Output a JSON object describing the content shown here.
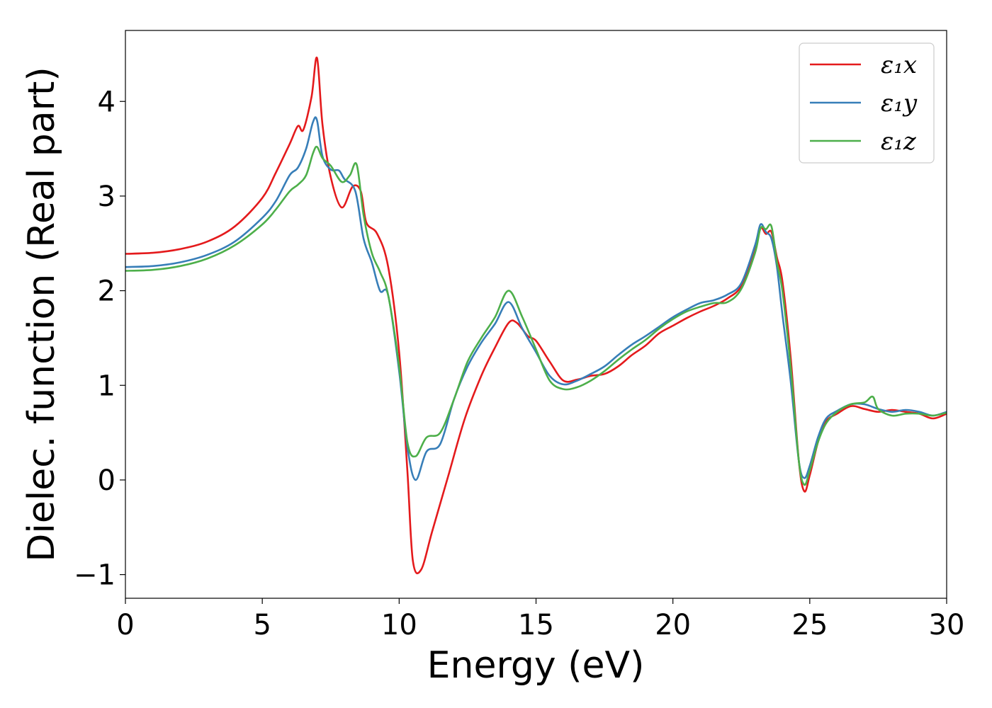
{
  "chart_data": {
    "type": "line",
    "title": "",
    "xlabel": "Energy (eV)",
    "ylabel": "Dielec. function (Real part)",
    "xlim": [
      0,
      30
    ],
    "ylim": [
      -1.25,
      4.75
    ],
    "xticks": [
      0,
      5,
      10,
      15,
      20,
      25,
      30
    ],
    "yticks": [
      -1,
      0,
      1,
      2,
      3,
      4
    ],
    "xtick_labels": [
      "0",
      "5",
      "10",
      "15",
      "20",
      "25",
      "30"
    ],
    "ytick_labels": [
      "−1",
      "0",
      "1",
      "2",
      "3",
      "4"
    ],
    "grid": false,
    "legend_position": "top-right",
    "series": [
      {
        "name": "ε₁x",
        "color": "#e41a1c",
        "x": [
          0,
          1,
          2,
          3,
          4,
          5,
          5.5,
          6.0,
          6.3,
          6.5,
          6.8,
          7.0,
          7.2,
          7.5,
          7.9,
          8.3,
          8.6,
          8.8,
          9.2,
          9.6,
          10.0,
          10.3,
          10.5,
          10.8,
          11.2,
          11.8,
          12.4,
          13.0,
          13.5,
          14.0,
          14.3,
          14.7,
          15.0,
          15.5,
          16.0,
          16.5,
          17.0,
          17.5,
          18.0,
          18.5,
          19.0,
          19.5,
          20.0,
          20.5,
          21.0,
          21.5,
          22.0,
          22.5,
          23.0,
          23.2,
          23.4,
          23.6,
          23.8,
          24.0,
          24.3,
          24.6,
          24.8,
          25.0,
          25.3,
          25.6,
          26.0,
          26.5,
          27.0,
          27.5,
          28.0,
          28.5,
          29.0,
          29.5,
          30.0
        ],
        "values": [
          2.39,
          2.4,
          2.44,
          2.52,
          2.68,
          2.98,
          3.25,
          3.55,
          3.74,
          3.7,
          4.05,
          4.46,
          3.75,
          3.2,
          2.88,
          3.1,
          3.05,
          2.72,
          2.6,
          2.25,
          1.35,
          0.1,
          -0.85,
          -0.95,
          -0.55,
          0.05,
          0.65,
          1.1,
          1.4,
          1.66,
          1.66,
          1.52,
          1.47,
          1.25,
          1.05,
          1.06,
          1.1,
          1.12,
          1.2,
          1.32,
          1.42,
          1.55,
          1.63,
          1.71,
          1.78,
          1.84,
          1.92,
          2.05,
          2.42,
          2.66,
          2.6,
          2.62,
          2.35,
          2.1,
          1.3,
          0.2,
          -0.12,
          0.05,
          0.4,
          0.62,
          0.7,
          0.78,
          0.75,
          0.72,
          0.74,
          0.72,
          0.7,
          0.65,
          0.7
        ]
      },
      {
        "name": "ε₁y",
        "color": "#377eb8",
        "x": [
          0,
          1,
          2,
          3,
          4,
          5,
          5.5,
          6.0,
          6.3,
          6.6,
          6.85,
          7.0,
          7.2,
          7.5,
          7.8,
          8.0,
          8.4,
          8.7,
          9.0,
          9.3,
          9.6,
          10.0,
          10.3,
          10.6,
          11.0,
          11.5,
          12.0,
          12.5,
          13.0,
          13.5,
          14.0,
          14.5,
          15.0,
          15.5,
          16.0,
          16.5,
          17.0,
          17.5,
          18.0,
          18.5,
          19.0,
          19.5,
          20.0,
          20.5,
          21.0,
          21.5,
          22.0,
          22.5,
          23.0,
          23.2,
          23.4,
          23.6,
          23.8,
          24.0,
          24.3,
          24.6,
          24.8,
          25.0,
          25.3,
          25.6,
          26.0,
          26.5,
          27.0,
          27.5,
          28.0,
          28.5,
          29.0,
          29.5,
          30.0
        ],
        "values": [
          2.25,
          2.26,
          2.3,
          2.38,
          2.52,
          2.77,
          2.95,
          3.22,
          3.3,
          3.5,
          3.78,
          3.8,
          3.42,
          3.28,
          3.27,
          3.18,
          3.05,
          2.55,
          2.3,
          2.0,
          1.95,
          1.15,
          0.35,
          0.0,
          0.3,
          0.38,
          0.85,
          1.2,
          1.45,
          1.65,
          1.88,
          1.6,
          1.35,
          1.1,
          1.01,
          1.05,
          1.12,
          1.2,
          1.32,
          1.43,
          1.52,
          1.62,
          1.72,
          1.8,
          1.87,
          1.9,
          1.96,
          2.08,
          2.48,
          2.7,
          2.62,
          2.55,
          2.25,
          1.75,
          1.05,
          0.2,
          0.02,
          0.15,
          0.45,
          0.65,
          0.73,
          0.8,
          0.8,
          0.75,
          0.72,
          0.74,
          0.72,
          0.68,
          0.72
        ]
      },
      {
        "name": "ε₁z",
        "color": "#4daf4a",
        "x": [
          0,
          1,
          2,
          3,
          4,
          5,
          5.5,
          6.0,
          6.3,
          6.6,
          6.85,
          7.0,
          7.2,
          7.5,
          7.9,
          8.2,
          8.45,
          8.7,
          9.0,
          9.3,
          9.6,
          10.0,
          10.3,
          10.6,
          11.0,
          11.5,
          12.0,
          12.5,
          13.0,
          13.5,
          14.0,
          14.5,
          15.0,
          15.5,
          16.0,
          16.5,
          17.0,
          17.5,
          18.0,
          18.5,
          19.0,
          19.5,
          20.0,
          20.5,
          21.0,
          21.5,
          22.0,
          22.5,
          23.0,
          23.2,
          23.4,
          23.6,
          23.8,
          24.0,
          24.3,
          24.6,
          24.8,
          25.0,
          25.3,
          25.6,
          26.0,
          26.5,
          27.0,
          27.3,
          27.5,
          28.0,
          28.5,
          29.0,
          29.5,
          30.0
        ],
        "values": [
          2.21,
          2.22,
          2.26,
          2.34,
          2.48,
          2.7,
          2.86,
          3.05,
          3.12,
          3.22,
          3.45,
          3.52,
          3.4,
          3.32,
          3.15,
          3.22,
          3.33,
          2.8,
          2.4,
          2.2,
          1.95,
          1.2,
          0.4,
          0.25,
          0.45,
          0.5,
          0.85,
          1.25,
          1.5,
          1.72,
          2.0,
          1.72,
          1.38,
          1.05,
          0.96,
          0.98,
          1.05,
          1.15,
          1.27,
          1.38,
          1.48,
          1.6,
          1.7,
          1.78,
          1.83,
          1.87,
          1.88,
          2.02,
          2.4,
          2.66,
          2.65,
          2.68,
          2.3,
          2.0,
          1.2,
          0.2,
          -0.05,
          0.1,
          0.4,
          0.6,
          0.72,
          0.8,
          0.82,
          0.88,
          0.75,
          0.68,
          0.7,
          0.7,
          0.68,
          0.71
        ]
      }
    ]
  }
}
